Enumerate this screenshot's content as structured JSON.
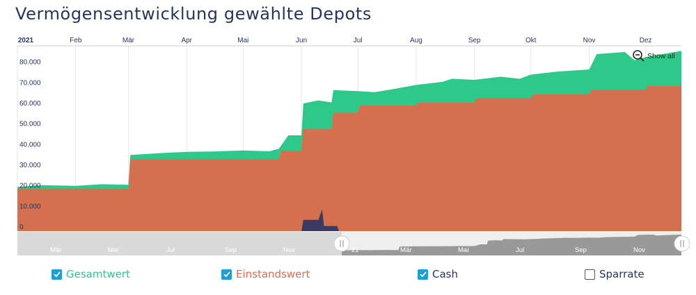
{
  "title": "Vermögensentwicklung gewählte Depots",
  "show_all_label": "Show all",
  "colors": {
    "gesamtwert": "#2ec98a",
    "einstandswert": "#d5704f",
    "cash": "#3b3a63",
    "grid": "#e6e6e6",
    "axis_text": "#26355e",
    "navigator_bg": "#d9d9d9",
    "navigator_series": "#8a8a8a"
  },
  "legend": [
    {
      "label": "Gesamtwert",
      "checked": true,
      "color": "#2ec98a"
    },
    {
      "label": "Einstandswert",
      "checked": true,
      "color": "#e8684a"
    },
    {
      "label": "Cash",
      "checked": true,
      "color": "#26355e"
    },
    {
      "label": "Sparrate",
      "checked": false,
      "color": "#26355e"
    }
  ],
  "navigator_labels": [
    "Mär",
    "Mai",
    "Jul",
    "Sep",
    "Nov",
    "21",
    "Mär",
    "Mai",
    "Jul",
    "Sep",
    "Nov"
  ],
  "chart_data": {
    "type": "area",
    "x_months": [
      "2021",
      "Feb",
      "Mär",
      "Apr",
      "Mai",
      "Jun",
      "Jul",
      "Aug",
      "Sep",
      "Okt",
      "Nov",
      "Dez"
    ],
    "y_ticks": [
      "0",
      "10.000",
      "20.000",
      "30.000",
      "40.000",
      "50.000",
      "60.000",
      "70.000",
      "80.000"
    ],
    "ylim": [
      0,
      90000
    ],
    "grid": true,
    "series": [
      {
        "name": "Gesamtwert",
        "points": [
          [
            "2021-01-01",
            21500
          ],
          [
            "2021-01-15",
            22300
          ],
          [
            "2021-02-01",
            22000
          ],
          [
            "2021-02-15",
            22800
          ],
          [
            "2021-03-01",
            22500
          ],
          [
            "2021-03-02",
            37000
          ],
          [
            "2021-03-20",
            38000
          ],
          [
            "2021-04-01",
            38500
          ],
          [
            "2021-04-15",
            38700
          ],
          [
            "2021-05-01",
            39200
          ],
          [
            "2021-05-15",
            38800
          ],
          [
            "2021-05-20",
            40000
          ],
          [
            "2021-05-25",
            46500
          ],
          [
            "2021-06-01",
            46500
          ],
          [
            "2021-06-02",
            62000
          ],
          [
            "2021-06-10",
            63500
          ],
          [
            "2021-06-17",
            62500
          ],
          [
            "2021-06-18",
            68500
          ],
          [
            "2021-07-01",
            68000
          ],
          [
            "2021-07-10",
            67500
          ],
          [
            "2021-07-20",
            69000
          ],
          [
            "2021-08-01",
            71000
          ],
          [
            "2021-08-15",
            72500
          ],
          [
            "2021-08-20",
            74000
          ],
          [
            "2021-09-01",
            73500
          ],
          [
            "2021-09-15",
            75000
          ],
          [
            "2021-09-25",
            74000
          ],
          [
            "2021-10-01",
            76000
          ],
          [
            "2021-10-15",
            77500
          ],
          [
            "2021-11-01",
            78500
          ],
          [
            "2021-11-05",
            86000
          ],
          [
            "2021-11-20",
            87000
          ],
          [
            "2021-11-25",
            83000
          ],
          [
            "2021-12-01",
            84500
          ],
          [
            "2021-12-10",
            86000
          ],
          [
            "2021-12-20",
            87500
          ]
        ]
      },
      {
        "name": "Einstandswert",
        "points": [
          [
            "2021-01-01",
            20500
          ],
          [
            "2021-03-01",
            20500
          ],
          [
            "2021-03-02",
            35000
          ],
          [
            "2021-05-20",
            35000
          ],
          [
            "2021-05-21",
            39000
          ],
          [
            "2021-06-01",
            39000
          ],
          [
            "2021-06-02",
            49500
          ],
          [
            "2021-06-17",
            49500
          ],
          [
            "2021-06-18",
            57500
          ],
          [
            "2021-07-01",
            57500
          ],
          [
            "2021-07-02",
            61000
          ],
          [
            "2021-08-01",
            61000
          ],
          [
            "2021-08-02",
            62500
          ],
          [
            "2021-09-01",
            62500
          ],
          [
            "2021-09-02",
            64500
          ],
          [
            "2021-10-01",
            64500
          ],
          [
            "2021-10-02",
            66500
          ],
          [
            "2021-11-01",
            66500
          ],
          [
            "2021-11-02",
            68500
          ],
          [
            "2021-12-01",
            68500
          ],
          [
            "2021-12-02",
            70500
          ],
          [
            "2021-12-20",
            70500
          ]
        ]
      },
      {
        "name": "Cash",
        "points": [
          [
            "2021-06-01",
            0
          ],
          [
            "2021-06-02",
            5500
          ],
          [
            "2021-06-10",
            5500
          ],
          [
            "2021-06-12",
            10500
          ],
          [
            "2021-06-13",
            2500
          ],
          [
            "2021-06-20",
            2500
          ],
          [
            "2021-06-21",
            0
          ]
        ]
      }
    ]
  }
}
